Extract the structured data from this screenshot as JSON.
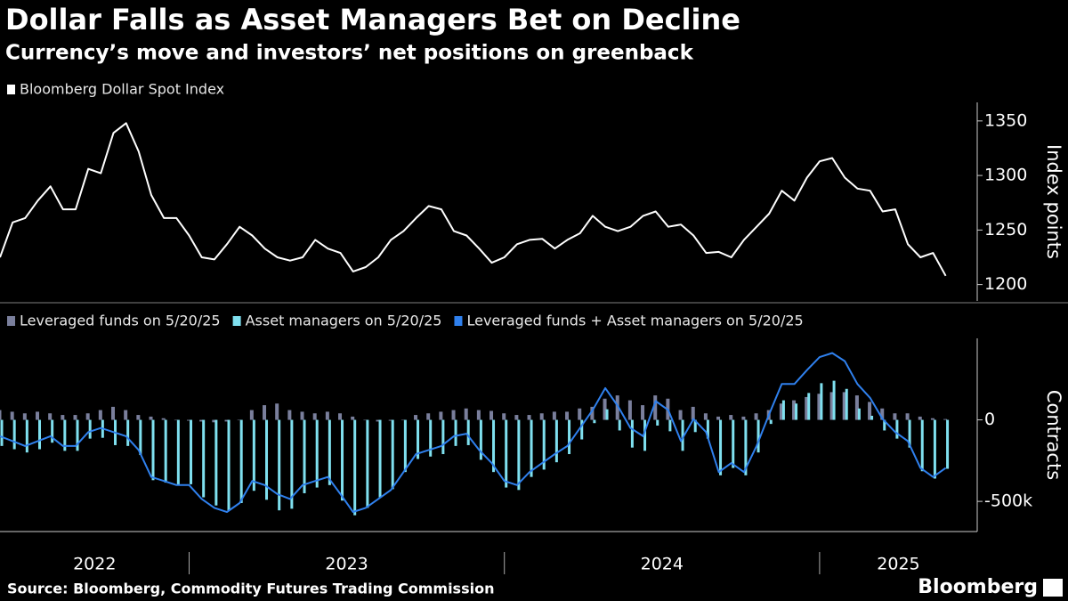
{
  "header": {
    "title": "Dollar Falls as Asset Managers Bet on Decline",
    "subtitle": "Currency’s move and investors’ net positions on greenback"
  },
  "footer": {
    "source": "Source: Bloomberg, Commodity Futures Trading Commission",
    "brand": "Bloomberg"
  },
  "chart_data": [
    {
      "type": "line",
      "y_axis_label": "Index points",
      "x": [
        2022.4,
        2022.44,
        2022.48,
        2022.52,
        2022.56,
        2022.6,
        2022.64,
        2022.68,
        2022.72,
        2022.76,
        2022.8,
        2022.84,
        2022.88,
        2022.92,
        2022.96,
        2023,
        2023.04,
        2023.08,
        2023.12,
        2023.16,
        2023.2,
        2023.24,
        2023.28,
        2023.32,
        2023.36,
        2023.4,
        2023.44,
        2023.48,
        2023.52,
        2023.56,
        2023.6,
        2023.64,
        2023.68,
        2023.72,
        2023.76,
        2023.8,
        2023.84,
        2023.88,
        2023.92,
        2023.96,
        2024,
        2024.04,
        2024.08,
        2024.12,
        2024.16,
        2024.2,
        2024.24,
        2024.28,
        2024.32,
        2024.36,
        2024.4,
        2024.44,
        2024.48,
        2024.52,
        2024.56,
        2024.6,
        2024.64,
        2024.68,
        2024.72,
        2024.76,
        2024.8,
        2024.84,
        2024.88,
        2024.92,
        2024.96,
        2025,
        2025.04,
        2025.08,
        2025.12,
        2025.16,
        2025.2,
        2025.24,
        2025.28,
        2025.32,
        2025.36,
        2025.4
      ],
      "series": [
        {
          "name": "Bloomberg Dollar Spot Index",
          "color": "#ffffff",
          "values": [
            1225,
            1257,
            1261,
            1277,
            1290,
            1269,
            1269,
            1306,
            1302,
            1339,
            1348,
            1322,
            1282,
            1261,
            1261,
            1245,
            1225,
            1223,
            1237,
            1253,
            1245,
            1233,
            1225,
            1222,
            1225,
            1241,
            1233,
            1229,
            1212,
            1216,
            1225,
            1241,
            1249,
            1261,
            1272,
            1269,
            1249,
            1245,
            1233,
            1220,
            1225,
            1237,
            1241,
            1242,
            1233,
            1241,
            1247,
            1263,
            1253,
            1249,
            1253,
            1263,
            1267,
            1253,
            1255,
            1245,
            1229,
            1230,
            1225,
            1241,
            1253,
            1265,
            1286,
            1277,
            1298,
            1313,
            1316,
            1298,
            1288,
            1286,
            1267,
            1269,
            1237,
            1225,
            1229,
            1208
          ]
        }
      ],
      "xlim": [
        2022.4,
        2025.5
      ],
      "ylim": [
        1185,
        1367
      ],
      "yticks": [
        1200,
        1250,
        1300,
        1350
      ]
    },
    {
      "type": "combo",
      "y_axis_label": "Contracts",
      "x": [
        2022.4,
        2022.44,
        2022.48,
        2022.52,
        2022.56,
        2022.6,
        2022.64,
        2022.68,
        2022.72,
        2022.76,
        2022.8,
        2022.84,
        2022.88,
        2022.92,
        2022.96,
        2023,
        2023.04,
        2023.08,
        2023.12,
        2023.16,
        2023.2,
        2023.24,
        2023.28,
        2023.32,
        2023.36,
        2023.4,
        2023.44,
        2023.48,
        2023.52,
        2023.56,
        2023.6,
        2023.64,
        2023.68,
        2023.72,
        2023.76,
        2023.8,
        2023.84,
        2023.88,
        2023.92,
        2023.96,
        2024,
        2024.04,
        2024.08,
        2024.12,
        2024.16,
        2024.2,
        2024.24,
        2024.28,
        2024.32,
        2024.36,
        2024.4,
        2024.44,
        2024.48,
        2024.52,
        2024.56,
        2024.6,
        2024.64,
        2024.68,
        2024.72,
        2024.76,
        2024.8,
        2024.84,
        2024.88,
        2024.92,
        2024.96,
        2025,
        2025.04,
        2025.08,
        2025.12,
        2025.16,
        2025.2,
        2025.24,
        2025.28,
        2025.32,
        2025.36,
        2025.4
      ],
      "series": [
        {
          "name": "Leveraged funds on 5/20/25",
          "type": "bar",
          "color": "#7a7f9c",
          "values": [
            60000,
            50000,
            40000,
            50000,
            40000,
            30000,
            30000,
            40000,
            60000,
            80000,
            60000,
            30000,
            20000,
            10000,
            0,
            -5000,
            -10000,
            -15000,
            -10000,
            0,
            60000,
            90000,
            100000,
            60000,
            50000,
            40000,
            50000,
            40000,
            20000,
            0,
            -10000,
            -5000,
            0,
            30000,
            40000,
            50000,
            60000,
            70000,
            60000,
            55000,
            40000,
            30000,
            30000,
            40000,
            50000,
            50000,
            70000,
            80000,
            130000,
            150000,
            120000,
            90000,
            150000,
            130000,
            60000,
            80000,
            40000,
            20000,
            30000,
            20000,
            40000,
            60000,
            100000,
            120000,
            140000,
            160000,
            170000,
            170000,
            150000,
            110000,
            70000,
            40000,
            40000,
            20000,
            10000,
            5000
          ]
        },
        {
          "name": "Asset managers on 5/20/25",
          "type": "bar",
          "color": "#7fe0ef",
          "values": [
            -160000,
            -180000,
            -200000,
            -180000,
            -140000,
            -190000,
            -190000,
            -115000,
            -110000,
            -155000,
            -160000,
            -215000,
            -370000,
            -385000,
            -400000,
            -395000,
            -475000,
            -525000,
            -555000,
            -510000,
            -435000,
            -490000,
            -555000,
            -545000,
            -450000,
            -415000,
            -400000,
            -495000,
            -585000,
            -540000,
            -475000,
            -425000,
            -320000,
            -240000,
            -225000,
            -210000,
            -160000,
            -155000,
            -245000,
            -320000,
            -415000,
            -430000,
            -350000,
            -305000,
            -260000,
            -210000,
            -120000,
            -20000,
            65000,
            -65000,
            -170000,
            -190000,
            -35000,
            -70000,
            -190000,
            -75000,
            -115000,
            -340000,
            -295000,
            -340000,
            -200000,
            -25000,
            120000,
            100000,
            165000,
            225000,
            240000,
            190000,
            70000,
            25000,
            -65000,
            -115000,
            -170000,
            -315000,
            -360000,
            -300000
          ]
        },
        {
          "name": "Leveraged funds + Asset managers on 5/20/25",
          "type": "line",
          "color": "#2f80ed",
          "values": [
            -100000,
            -130000,
            -160000,
            -130000,
            -100000,
            -160000,
            -160000,
            -75000,
            -50000,
            -75000,
            -100000,
            -185000,
            -350000,
            -375000,
            -400000,
            -400000,
            -485000,
            -540000,
            -565000,
            -510000,
            -375000,
            -400000,
            -455000,
            -485000,
            -400000,
            -375000,
            -350000,
            -455000,
            -565000,
            -540000,
            -485000,
            -430000,
            -320000,
            -210000,
            -185000,
            -160000,
            -100000,
            -85000,
            -185000,
            -265000,
            -375000,
            -400000,
            -320000,
            -265000,
            -210000,
            -160000,
            -50000,
            60000,
            195000,
            85000,
            -50000,
            -100000,
            115000,
            60000,
            -130000,
            5000,
            -75000,
            -320000,
            -265000,
            -320000,
            -160000,
            35000,
            220000,
            220000,
            305000,
            385000,
            410000,
            360000,
            220000,
            135000,
            5000,
            -75000,
            -130000,
            -295000,
            -350000,
            -295000
          ]
        }
      ],
      "xlim": [
        2022.4,
        2025.5
      ],
      "ylim": [
        -685000,
        500000
      ],
      "yticks": [
        {
          "value": -500000,
          "label": "-500k"
        },
        0
      ],
      "xticks": [
        2023,
        2024,
        2025
      ],
      "year_labels": [
        2022,
        2023,
        2024,
        2025
      ]
    }
  ]
}
